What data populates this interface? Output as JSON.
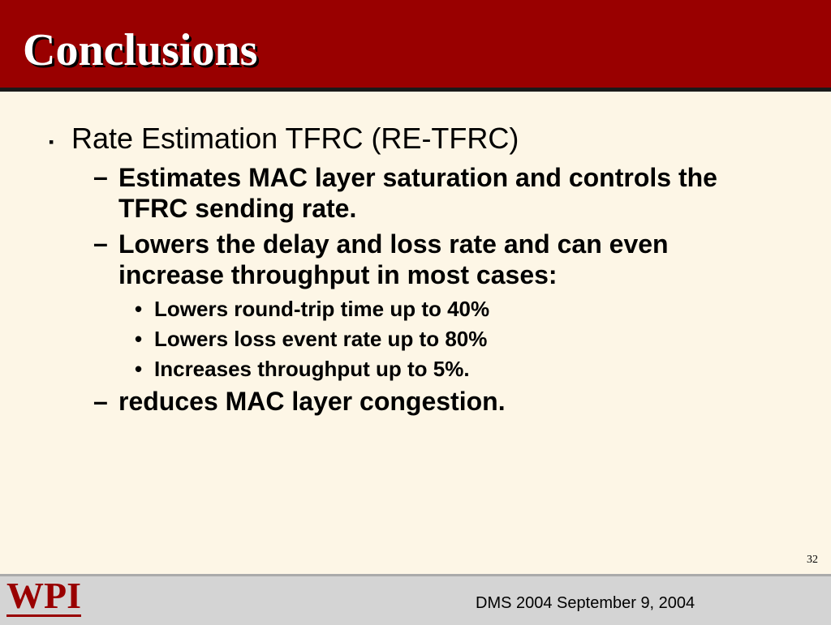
{
  "header": {
    "title": "Conclusions"
  },
  "content": {
    "bullet": "Rate Estimation TFRC (RE-TFRC)",
    "items": [
      {
        "text": "Estimates MAC layer saturation and controls the TFRC sending rate."
      },
      {
        "text": "Lowers the delay and loss rate and can even increase throughput in most cases:",
        "subitems": [
          "Lowers round-trip time up to 40%",
          "Lowers loss event rate up to 80%",
          "Increases throughput up to 5%."
        ]
      },
      {
        "text": "reduces MAC layer congestion."
      }
    ]
  },
  "footer": {
    "page_number": "32",
    "logo": "WPI",
    "text": "DMS 2004 September 9, 2004"
  }
}
